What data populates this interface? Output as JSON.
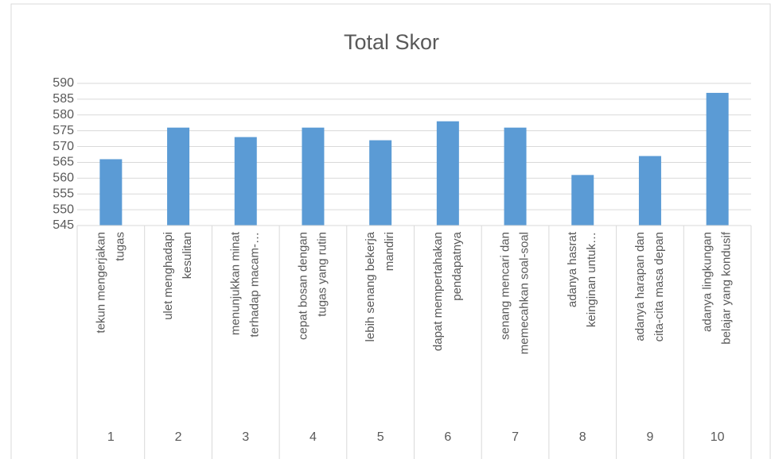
{
  "chart_data": {
    "type": "bar",
    "title": "Total Skor",
    "categories": [
      [
        "tekun mengerjakan",
        "tugas"
      ],
      [
        "ulet menghadapi",
        "kesulitan"
      ],
      [
        "menunjukkan minat",
        "terhadap macam-…"
      ],
      [
        "cepat bosan dengan",
        "tugas yang rutin"
      ],
      [
        "lebih senang bekerja",
        "mandiri"
      ],
      [
        "dapat mempertahakan",
        "pendapatnya"
      ],
      [
        "senang mencari dan",
        "memecahkan soal-soal"
      ],
      [
        "adanya hasrat",
        "keinginan untuk…"
      ],
      [
        "adanya harapan dan",
        "cita-cita masa depan"
      ],
      [
        "adanya lingkungan",
        "belajar yang kondusif"
      ]
    ],
    "category_numbers": [
      1,
      2,
      3,
      4,
      5,
      6,
      7,
      8,
      9,
      10
    ],
    "values": [
      566,
      576,
      573,
      576,
      572,
      578,
      576,
      561,
      567,
      587
    ],
    "color": "#5b9bd5",
    "ylim": [
      545,
      590
    ],
    "yticks": [
      545,
      550,
      555,
      560,
      565,
      570,
      575,
      580,
      585,
      590
    ],
    "grid": true
  }
}
